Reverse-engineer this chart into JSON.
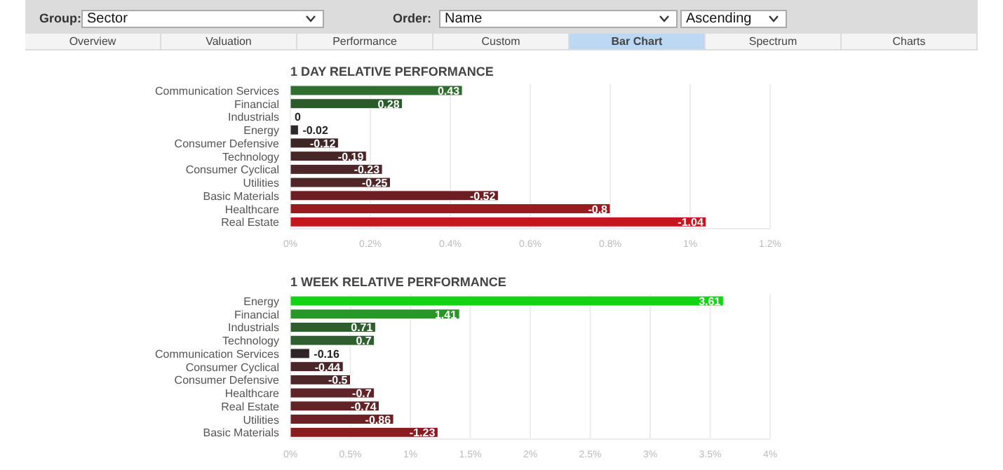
{
  "chart_data": [
    {
      "type": "other",
      "annotations": [
        "Group:",
        "Sector",
        "Order:",
        "Name",
        "Ascending"
      ],
      "categories": [
        "Overview",
        "Valuation",
        "Performance",
        "Custom",
        "Bar Chart",
        "Spectrum",
        "Charts"
      ]
    },
    {
      "type": "bar",
      "orientation": "horizontal",
      "title": "1 DAY RELATIVE PERFORMANCE",
      "categories": [
        "Communication Services",
        "Financial",
        "Industrials",
        "Energy",
        "Consumer Defensive",
        "Technology",
        "Consumer Cyclical",
        "Utilities",
        "Basic Materials",
        "Healthcare",
        "Real Estate"
      ],
      "values": [
        0.43,
        0.28,
        0,
        0.02,
        0.12,
        0.19,
        0.23,
        0.25,
        0.52,
        0.8,
        1.04
      ],
      "annotations": [
        {
          "text": "0.43",
          "x": 0.43,
          "y": "Communication Services"
        },
        {
          "text": "0.28",
          "x": 0.28,
          "y": "Financial"
        },
        {
          "text": "0",
          "x": 0,
          "y": "Industrials"
        },
        {
          "text": "-0.02",
          "x": 0.02,
          "y": "Energy"
        },
        {
          "text": "-0.12",
          "x": 0.12,
          "y": "Consumer Defensive"
        },
        {
          "text": "-0.19",
          "x": 0.19,
          "y": "Technology"
        },
        {
          "text": "-0.23",
          "x": 0.23,
          "y": "Consumer Cyclical"
        },
        {
          "text": "-0.25",
          "x": 0.25,
          "y": "Utilities"
        },
        {
          "text": "-0.52",
          "x": 0.52,
          "y": "Basic Materials"
        },
        {
          "text": "-0.8",
          "x": 0.8,
          "y": "Healthcare"
        },
        {
          "text": "-1.04",
          "x": 1.04,
          "y": "Real Estate"
        }
      ],
      "colors": [
        "#2f6e2f",
        "#2b5a2b",
        "#2b5a2b",
        "#2f2a2b",
        "#3e2627",
        "#482628",
        "#4c2628",
        "#502628",
        "#6b1f22",
        "#9a1b1f",
        "#c4161c"
      ],
      "xlim": [
        0,
        1.2
      ],
      "xticks": [
        {
          "value": 0,
          "label": "0%"
        },
        {
          "value": 0.2,
          "label": "0.2%"
        },
        {
          "value": 0.4,
          "label": "0.4%"
        },
        {
          "value": 0.6,
          "label": "0.6%"
        },
        {
          "value": 0.8,
          "label": "0.8%"
        },
        {
          "value": 1,
          "label": "1%"
        },
        {
          "value": 1.2,
          "label": "1.2%"
        }
      ],
      "grid": "x"
    },
    {
      "type": "bar",
      "orientation": "horizontal",
      "title": "1 WEEK RELATIVE PERFORMANCE",
      "categories": [
        "Energy",
        "Financial",
        "Industrials",
        "Technology",
        "Communication Services",
        "Consumer Cyclical",
        "Consumer Defensive",
        "Healthcare",
        "Real Estate",
        "Utilities",
        "Basic Materials"
      ],
      "values": [
        3.61,
        1.41,
        0.71,
        0.7,
        0.16,
        0.44,
        0.5,
        0.7,
        0.74,
        0.86,
        1.23
      ],
      "annotations": [
        {
          "text": "3.61",
          "x": 3.61,
          "y": "Energy"
        },
        {
          "text": "1.41",
          "x": 1.41,
          "y": "Financial"
        },
        {
          "text": "0.71",
          "x": 0.71,
          "y": "Industrials"
        },
        {
          "text": "0.7",
          "x": 0.7,
          "y": "Technology"
        },
        {
          "text": "-0.16",
          "x": 0.16,
          "y": "Communication Services"
        },
        {
          "text": "-0.44",
          "x": 0.44,
          "y": "Consumer Cyclical"
        },
        {
          "text": "-0.5",
          "x": 0.5,
          "y": "Consumer Defensive"
        },
        {
          "text": "-0.7",
          "x": 0.7,
          "y": "Healthcare"
        },
        {
          "text": "-0.74",
          "x": 0.74,
          "y": "Real Estate"
        },
        {
          "text": "-0.86",
          "x": 0.86,
          "y": "Utilities"
        },
        {
          "text": "-1.23",
          "x": 1.23,
          "y": "Basic Materials"
        }
      ],
      "colors": [
        "#12d412",
        "#2a962a",
        "#2e5e2e",
        "#2f5f2f",
        "#302528",
        "#4a2628",
        "#4f2629",
        "#5e2427",
        "#622326",
        "#6d2125",
        "#8b1b1f"
      ],
      "xlim": [
        0,
        4
      ],
      "xticks": [
        {
          "value": 0,
          "label": "0%"
        },
        {
          "value": 0.5,
          "label": "0.5%"
        },
        {
          "value": 1,
          "label": "1%"
        },
        {
          "value": 1.5,
          "label": "1.5%"
        },
        {
          "value": 2,
          "label": "2%"
        },
        {
          "value": 2.5,
          "label": "2.5%"
        },
        {
          "value": 3,
          "label": "3%"
        },
        {
          "value": 3.5,
          "label": "3.5%"
        },
        {
          "value": 4,
          "label": "4%"
        }
      ],
      "grid": "x"
    }
  ]
}
